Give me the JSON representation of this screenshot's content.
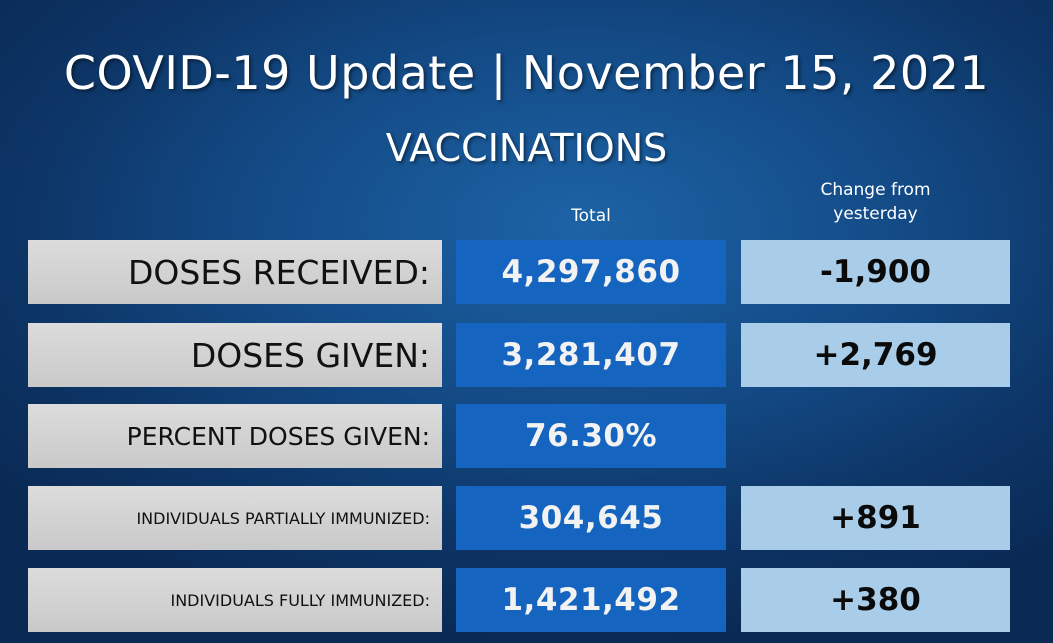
{
  "header": {
    "title": "COVID-19 Update | November 15, 2021",
    "subtitle": "VACCINATIONS"
  },
  "columns": {
    "total": "Total",
    "change_line1": "Change from",
    "change_line2": "yesterday"
  },
  "rows": [
    {
      "label": "DOSES RECEIVED:",
      "total": "4,297,860",
      "change": "-1,900"
    },
    {
      "label": "DOSES GIVEN:",
      "total": "3,281,407",
      "change": "+2,769"
    },
    {
      "label": "PERCENT DOSES GIVEN:",
      "total": "76.30%",
      "change": ""
    },
    {
      "label": "INDIVIDUALS PARTIALLY IMMUNIZED:",
      "total": "304,645",
      "change": "+891"
    },
    {
      "label": "INDIVIDUALS FULLY IMMUNIZED:",
      "total": "1,421,492",
      "change": "+380"
    }
  ],
  "colors": {
    "label_bg": "#d3d3d3",
    "total_bg": "#1565c0",
    "change_bg": "#a9cde9"
  }
}
